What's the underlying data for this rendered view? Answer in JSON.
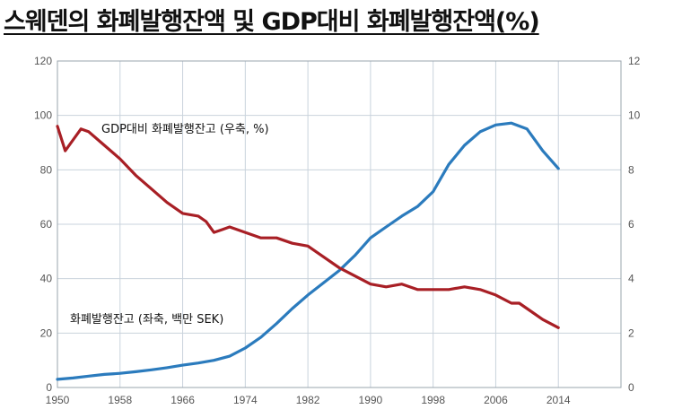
{
  "title": "스웨덴의 화폐발행잔액 및 GDP대비 화폐발행잔액(%)",
  "chart_data": {
    "type": "line",
    "title": "스웨덴의 화폐발행잔액 및 GDP대비 화폐발행잔액(%)",
    "x_ticks": [
      "1950",
      "1958",
      "1966",
      "1974",
      "1982",
      "1990",
      "1998",
      "2006",
      "2014"
    ],
    "xlim": [
      1950,
      2022
    ],
    "ylim_left": [
      0,
      120
    ],
    "ylim_right": [
      0,
      12
    ],
    "y_ticks_left": [
      "0",
      "20",
      "40",
      "60",
      "80",
      "100",
      "120"
    ],
    "y_ticks_right": [
      "0",
      "2",
      "4",
      "6",
      "8",
      "10",
      "12"
    ],
    "grid": true,
    "series": [
      {
        "name": "화폐발행잔고 (좌축, 백만 SEK)",
        "axis": "left",
        "color": "#2b7bbd",
        "x": [
          1950,
          1952,
          1954,
          1956,
          1958,
          1960,
          1962,
          1964,
          1966,
          1968,
          1970,
          1972,
          1974,
          1976,
          1978,
          1980,
          1982,
          1984,
          1986,
          1988,
          1990,
          1992,
          1994,
          1996,
          1998,
          2000,
          2002,
          2004,
          2006,
          2008,
          2010,
          2012,
          2014
        ],
        "y": [
          3,
          3.5,
          4.2,
          4.8,
          5.2,
          5.8,
          6.5,
          7.3,
          8.2,
          9,
          10,
          11.5,
          14.5,
          18.5,
          23.5,
          29,
          34,
          38.5,
          43,
          48.5,
          55,
          59,
          63,
          66.5,
          72,
          82,
          89,
          94,
          96.5,
          97.2,
          95,
          87,
          80.5
        ]
      },
      {
        "name": "GDP대비 화폐발행잔고 (우축, %)",
        "axis": "right",
        "color": "#a81f25",
        "x": [
          1950,
          1951,
          1952,
          1953,
          1954,
          1956,
          1958,
          1960,
          1962,
          1964,
          1966,
          1968,
          1969,
          1970,
          1971,
          1972,
          1974,
          1976,
          1978,
          1980,
          1982,
          1984,
          1986,
          1988,
          1990,
          1992,
          1994,
          1996,
          1998,
          2000,
          2002,
          2004,
          2006,
          2008,
          2009,
          2010,
          2012,
          2014
        ],
        "y": [
          9.6,
          8.7,
          9.1,
          9.5,
          9.4,
          8.9,
          8.4,
          7.8,
          7.3,
          6.8,
          6.4,
          6.3,
          6.1,
          5.7,
          5.8,
          5.9,
          5.7,
          5.5,
          5.5,
          5.3,
          5.2,
          4.8,
          4.4,
          4.1,
          3.8,
          3.7,
          3.8,
          3.6,
          3.6,
          3.6,
          3.7,
          3.6,
          3.4,
          3.1,
          3.1,
          2.9,
          2.5,
          2.2
        ]
      }
    ],
    "annotations": [
      {
        "text": "GDP대비 화폐발행잔고 (우축, %)",
        "series": 1
      },
      {
        "text": "화폐발행잔고 (좌축, 백만 SEK)",
        "series": 0
      }
    ]
  }
}
